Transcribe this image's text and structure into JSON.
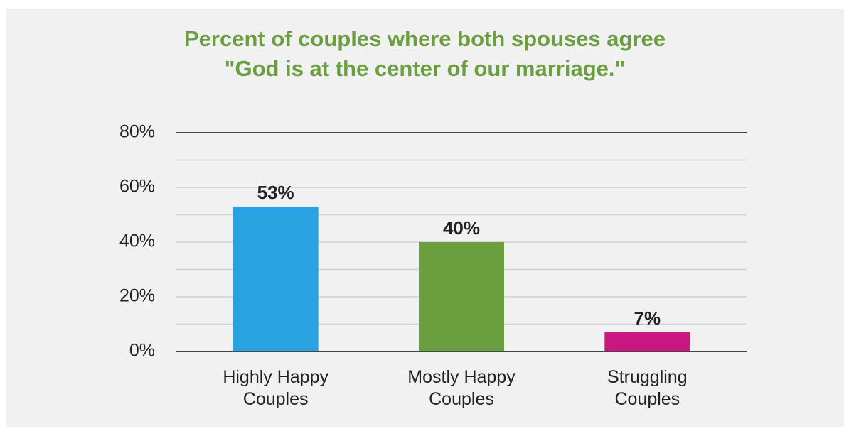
{
  "chart_data": {
    "type": "bar",
    "title": "Percent of couples where both spouses agree\n\"God is at the center of our marriage.\"",
    "categories": [
      "Highly Happy\nCouples",
      "Mostly Happy\nCouples",
      "Struggling\nCouples"
    ],
    "values": [
      53,
      40,
      7
    ],
    "value_labels": [
      "53%",
      "40%",
      "7%"
    ],
    "colors": [
      "#29a3e0",
      "#6a9e3f",
      "#c8177f"
    ],
    "ylim": [
      0,
      80
    ],
    "yticks": [
      {
        "value": 0,
        "label": "0%"
      },
      {
        "value": 20,
        "label": "20%"
      },
      {
        "value": 40,
        "label": "40%"
      },
      {
        "value": 60,
        "label": "60%"
      },
      {
        "value": 80,
        "label": "80%"
      }
    ],
    "minor_yticks": [
      10,
      30,
      50,
      70
    ],
    "grid": true
  }
}
